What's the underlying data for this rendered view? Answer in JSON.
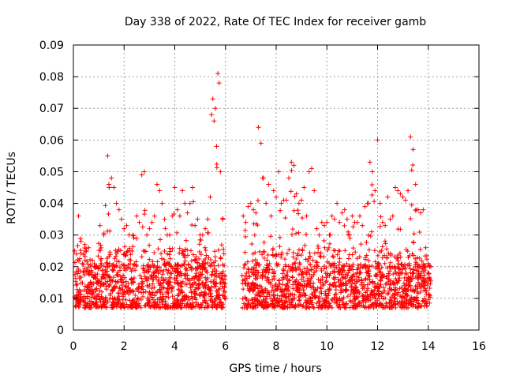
{
  "chart_data": {
    "type": "scatter",
    "title": "Day 338 of 2022, Rate Of TEC Index for receiver gamb",
    "xlabel": "GPS time / hours",
    "ylabel": "ROTI / TECUs",
    "xlim": [
      0,
      16
    ],
    "ylim": [
      0,
      0.09
    ],
    "x_ticks": [
      "0",
      "2",
      "4",
      "6",
      "8",
      "10",
      "12",
      "14",
      "16"
    ],
    "y_ticks": [
      "0",
      "0.01",
      "0.02",
      "0.03",
      "0.04",
      "0.05",
      "0.06",
      "0.07",
      "0.08",
      "0.09"
    ],
    "grid": true,
    "marker": "+",
    "series_color": "#ff0000",
    "data_gap_hours": [
      6.0,
      6.65
    ],
    "series": [
      {
        "name": "ROTI",
        "x": [
          0.05,
          0.12,
          0.2,
          0.3,
          0.45,
          0.6,
          0.75,
          0.9,
          1.05,
          1.2,
          1.35,
          1.4,
          1.5,
          1.6,
          1.7,
          1.8,
          1.9,
          2.0,
          2.1,
          2.2,
          2.35,
          2.5,
          2.6,
          2.7,
          2.8,
          2.9,
          3.0,
          3.1,
          3.2,
          3.3,
          3.4,
          3.5,
          3.6,
          3.7,
          3.8,
          3.9,
          4.0,
          4.1,
          4.2,
          4.3,
          4.4,
          4.5,
          4.6,
          4.7,
          4.8,
          4.9,
          5.0,
          5.1,
          5.2,
          5.3,
          5.4,
          5.45,
          5.5,
          5.55,
          5.6,
          5.65,
          5.7,
          5.75,
          5.8,
          5.9,
          6.7,
          6.8,
          6.9,
          7.0,
          7.1,
          7.2,
          7.3,
          7.4,
          7.5,
          7.6,
          7.7,
          7.8,
          7.9,
          8.0,
          8.1,
          8.2,
          8.3,
          8.4,
          8.5,
          8.6,
          8.7,
          8.8,
          8.9,
          9.0,
          9.1,
          9.2,
          9.3,
          9.4,
          9.5,
          9.6,
          9.7,
          9.8,
          9.9,
          10.0,
          10.1,
          10.2,
          10.3,
          10.4,
          10.5,
          10.6,
          10.7,
          10.8,
          10.9,
          11.0,
          11.1,
          11.2,
          11.3,
          11.4,
          11.5,
          11.6,
          11.7,
          11.8,
          11.9,
          12.0,
          12.1,
          12.2,
          12.3,
          12.4,
          12.5,
          12.6,
          12.7,
          12.8,
          12.9,
          13.0,
          13.1,
          13.2,
          13.3,
          13.4,
          13.5,
          13.6,
          13.7,
          13.8,
          13.9,
          14.0,
          14.1
        ],
        "y": [
          0.025,
          0.024,
          0.036,
          0.028,
          0.027,
          0.026,
          0.022,
          0.02,
          0.033,
          0.03,
          0.055,
          0.046,
          0.048,
          0.045,
          0.04,
          0.038,
          0.035,
          0.032,
          0.033,
          0.03,
          0.03,
          0.036,
          0.034,
          0.049,
          0.05,
          0.03,
          0.032,
          0.034,
          0.036,
          0.046,
          0.044,
          0.04,
          0.035,
          0.03,
          0.03,
          0.036,
          0.045,
          0.038,
          0.036,
          0.044,
          0.04,
          0.037,
          0.04,
          0.045,
          0.033,
          0.035,
          0.03,
          0.03,
          0.032,
          0.035,
          0.042,
          0.068,
          0.073,
          0.066,
          0.07,
          0.058,
          0.081,
          0.078,
          0.05,
          0.035,
          0.036,
          0.034,
          0.039,
          0.04,
          0.038,
          0.037,
          0.064,
          0.059,
          0.048,
          0.04,
          0.046,
          0.036,
          0.044,
          0.042,
          0.05,
          0.04,
          0.041,
          0.041,
          0.048,
          0.053,
          0.052,
          0.043,
          0.04,
          0.041,
          0.045,
          0.036,
          0.05,
          0.051,
          0.044,
          0.032,
          0.03,
          0.034,
          0.033,
          0.034,
          0.03,
          0.036,
          0.035,
          0.04,
          0.034,
          0.037,
          0.038,
          0.035,
          0.03,
          0.036,
          0.034,
          0.034,
          0.036,
          0.033,
          0.039,
          0.04,
          0.053,
          0.05,
          0.044,
          0.06,
          0.04,
          0.034,
          0.033,
          0.042,
          0.035,
          0.036,
          0.045,
          0.044,
          0.043,
          0.042,
          0.041,
          0.044,
          0.061,
          0.057,
          0.046,
          0.038,
          0.037,
          0.038,
          0.026,
          0.021,
          0.02
        ]
      }
    ]
  }
}
